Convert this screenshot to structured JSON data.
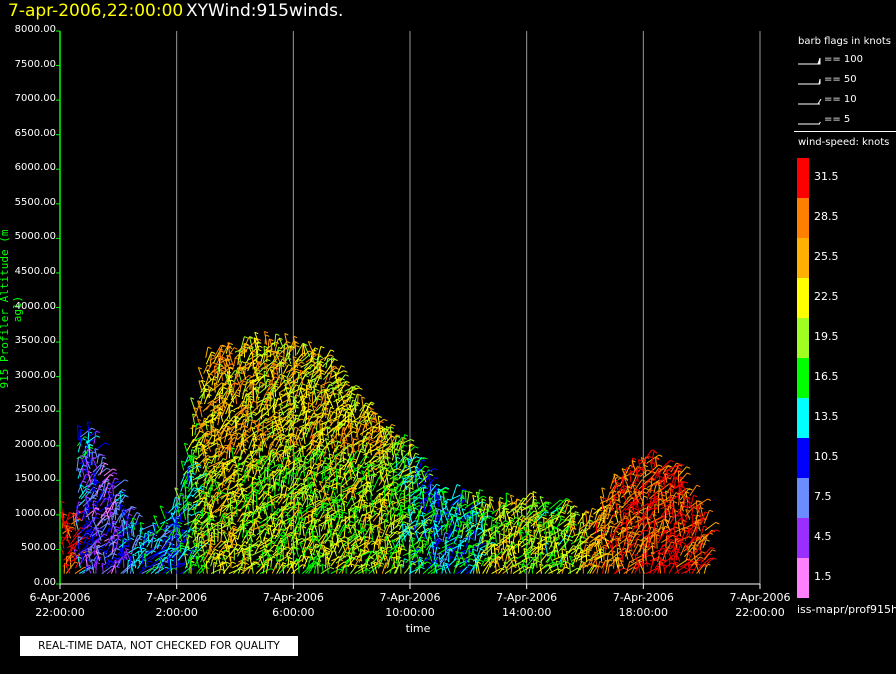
{
  "header": {
    "date_text": "7-apr-2006,22:00:00",
    "title_text": "XYWind:915winds."
  },
  "chart_data": {
    "type": "scatter",
    "title": "XYWind:915winds.",
    "ylabel": "915 Profiler Altitude (m agl)",
    "xlabel": "time",
    "ylim": [
      0,
      8000
    ],
    "x_hours_range": [
      0,
      24
    ],
    "grid_x": true,
    "y_ticks": [
      "8000.00",
      "7500.00",
      "7000.00",
      "6500.00",
      "6000.00",
      "5500.00",
      "5000.00",
      "4500.00",
      "4000.00",
      "3500.00",
      "3000.00",
      "2500.00",
      "2000.00",
      "1500.00",
      "1000.00",
      "500.00",
      "0.00"
    ],
    "x_ticks": [
      {
        "date": "6-Apr-2006",
        "time": "22:00:00"
      },
      {
        "date": "7-Apr-2006",
        "time": "2:00:00"
      },
      {
        "date": "7-Apr-2006",
        "time": "6:00:00"
      },
      {
        "date": "7-Apr-2006",
        "time": "10:00:00"
      },
      {
        "date": "7-Apr-2006",
        "time": "14:00:00"
      },
      {
        "date": "7-Apr-2006",
        "time": "18:00:00"
      },
      {
        "date": "7-Apr-2006",
        "time": "22:00:00"
      }
    ],
    "wind_profile": [
      {
        "hours": 0.5,
        "top_m": 2100,
        "speed_kt": 10
      },
      {
        "hours": 1.0,
        "top_m": 2200,
        "speed_kt": 7
      },
      {
        "hours": 1.5,
        "top_m": 1600,
        "speed_kt": 6
      },
      {
        "hours": 2.5,
        "top_m": 900,
        "speed_kt": 10
      },
      {
        "hours": 3.0,
        "top_m": 700,
        "speed_kt": 12
      },
      {
        "hours": 4.0,
        "top_m": 1200,
        "speed_kt": 12
      },
      {
        "hours": 5.0,
        "top_m": 3300,
        "speed_kt": 22
      },
      {
        "hours": 6.0,
        "top_m": 3400,
        "speed_kt": 22
      },
      {
        "hours": 7.0,
        "top_m": 3500,
        "speed_kt": 20
      },
      {
        "hours": 8.0,
        "top_m": 3400,
        "speed_kt": 20
      },
      {
        "hours": 9.0,
        "top_m": 3300,
        "speed_kt": 20
      },
      {
        "hours": 10.0,
        "top_m": 2700,
        "speed_kt": 20
      },
      {
        "hours": 11.0,
        "top_m": 2300,
        "speed_kt": 22
      },
      {
        "hours": 12.0,
        "top_m": 1900,
        "speed_kt": 16
      },
      {
        "hours": 13.0,
        "top_m": 1300,
        "speed_kt": 12
      },
      {
        "hours": 14.0,
        "top_m": 1200,
        "speed_kt": 15
      },
      {
        "hours": 15.0,
        "top_m": 1100,
        "speed_kt": 22
      },
      {
        "hours": 16.0,
        "top_m": 1200,
        "speed_kt": 21
      },
      {
        "hours": 17.0,
        "top_m": 1100,
        "speed_kt": 18
      },
      {
        "hours": 18.0,
        "top_m": 900,
        "speed_kt": 24
      },
      {
        "hours": 19.0,
        "top_m": 1500,
        "speed_kt": 28
      },
      {
        "hours": 20.0,
        "top_m": 1800,
        "speed_kt": 30
      },
      {
        "hours": 21.0,
        "top_m": 1700,
        "speed_kt": 31
      },
      {
        "hours": 22.0,
        "top_m": 1000,
        "speed_kt": 31
      }
    ]
  },
  "legend": {
    "barb_title": "barb flags in knots",
    "barb_items": [
      {
        "label": "== 100",
        "kind": "100"
      },
      {
        "label": "== 50",
        "kind": "50"
      },
      {
        "label": "== 10",
        "kind": "10"
      },
      {
        "label": "== 5",
        "kind": "5"
      }
    ],
    "speed_title": "wind-speed: knots",
    "speed_bins": [
      {
        "label": "31.5",
        "color": "#ff0000"
      },
      {
        "label": "28.5",
        "color": "#ff8000"
      },
      {
        "label": "25.5",
        "color": "#ffb000"
      },
      {
        "label": "22.5",
        "color": "#ffff00"
      },
      {
        "label": "19.5",
        "color": "#a0ff20"
      },
      {
        "label": "16.5",
        "color": "#00ff00"
      },
      {
        "label": "13.5",
        "color": "#00ffff"
      },
      {
        "label": "10.5",
        "color": "#0000ff"
      },
      {
        "label": "7.5",
        "color": "#6a8cff"
      },
      {
        "label": "4.5",
        "color": "#9a2eff"
      },
      {
        "label": "1.5",
        "color": "#ff80ff"
      }
    ]
  },
  "footer": {
    "source_text": "iss-mapr/prof915h",
    "notice": "REAL-TIME DATA, NOT CHECKED FOR QUALITY"
  },
  "colors": {
    "axis": "#00ff00",
    "date": "#ffff00",
    "grid": "#999999"
  }
}
